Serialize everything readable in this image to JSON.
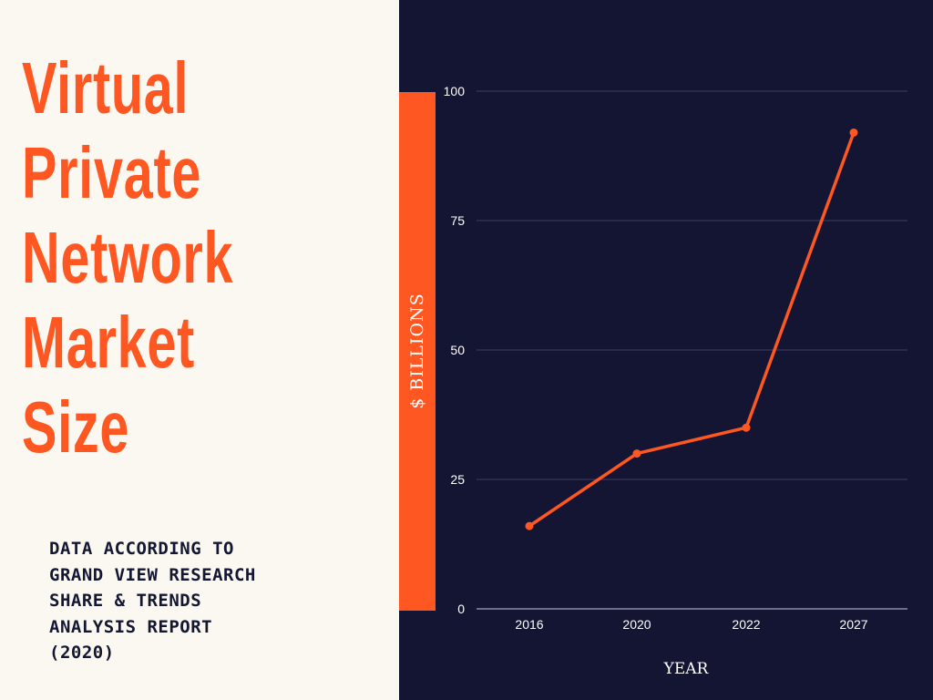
{
  "heading": {
    "lines": [
      "Virtual",
      "Private",
      "Network",
      "Market",
      "Size"
    ]
  },
  "source_note": {
    "lines": [
      "DATA ACCORDING TO",
      "GRAND VIEW RESEARCH",
      "SHARE & TRENDS",
      "ANALYSIS REPORT",
      "(2020)"
    ]
  },
  "colors": {
    "accent": "#FF5722",
    "panel_dark": "#141533",
    "panel_light": "#FAF8F0",
    "text_dark": "#141733"
  },
  "chart_data": {
    "type": "line",
    "title": "Virtual Private Network Market Size",
    "xlabel": "YEAR",
    "ylabel": "$ BILLIONS",
    "categories": [
      "2016",
      "2020",
      "2022",
      "2027"
    ],
    "series": [
      {
        "values": [
          16,
          30,
          35,
          92
        ]
      }
    ],
    "ylim": [
      0,
      100
    ],
    "yticks": [
      0,
      25,
      50,
      75,
      100
    ],
    "grid": true,
    "legend": "none"
  }
}
